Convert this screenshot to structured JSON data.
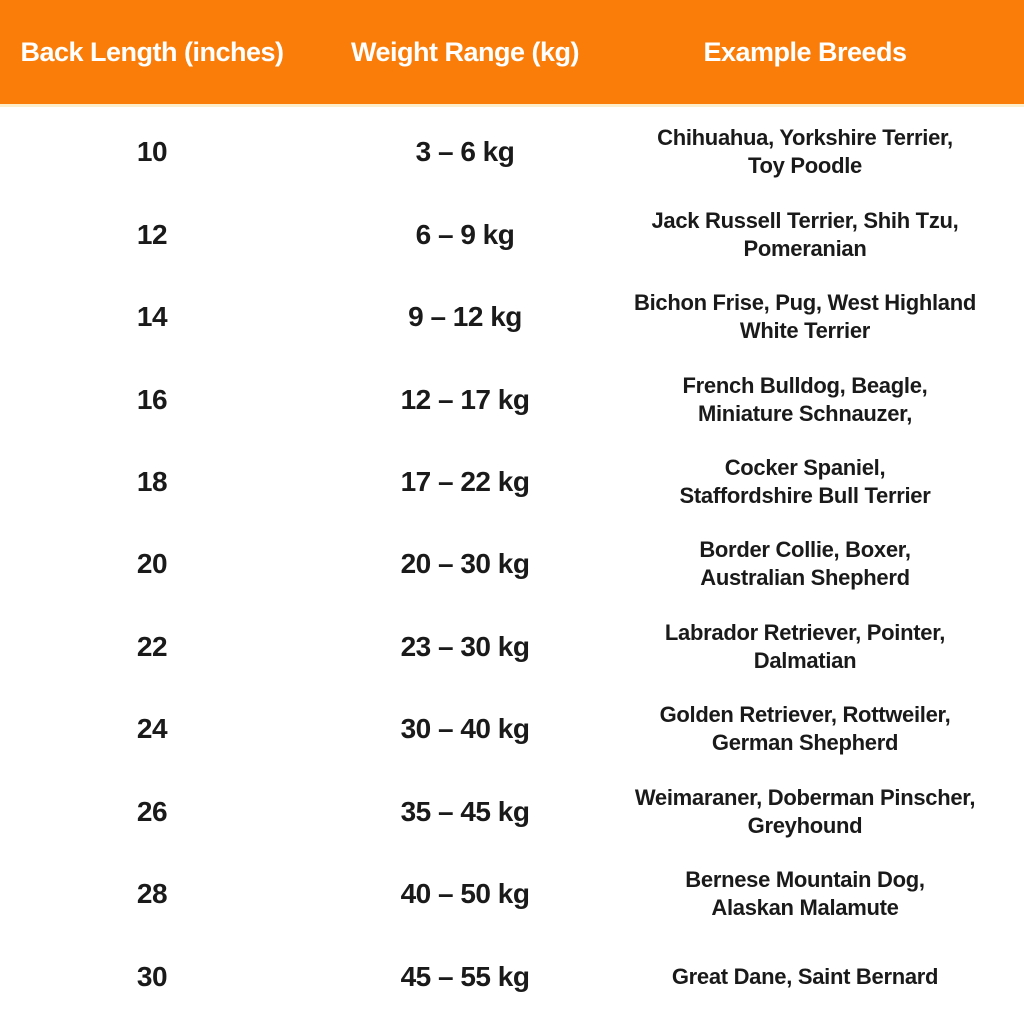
{
  "chart_data": {
    "type": "table",
    "columns": [
      "Back Length (inches)",
      "Weight Range (kg)",
      "Example Breeds"
    ],
    "rows": [
      {
        "back_length": "10",
        "weight_range": "3 – 6 kg",
        "breeds": "Chihuahua,  Yorkshire Terrier,\nToy Poodle"
      },
      {
        "back_length": "12",
        "weight_range": "6 – 9 kg",
        "breeds": "Jack Russell Terrier, Shih Tzu,\nPomeranian"
      },
      {
        "back_length": "14",
        "weight_range": "9 – 12 kg",
        "breeds": "Bichon Frise, Pug, West Highland\nWhite Terrier"
      },
      {
        "back_length": "16",
        "weight_range": "12 – 17 kg",
        "breeds": "French Bulldog, Beagle,\nMiniature Schnauzer,"
      },
      {
        "back_length": "18",
        "weight_range": "17 – 22 kg",
        "breeds": "Cocker Spaniel,\nStaffordshire Bull Terrier"
      },
      {
        "back_length": "20",
        "weight_range": "20 – 30 kg",
        "breeds": "Border Collie, Boxer,\nAustralian Shepherd"
      },
      {
        "back_length": "22",
        "weight_range": "23 – 30 kg",
        "breeds": "Labrador Retriever, Pointer,\nDalmatian"
      },
      {
        "back_length": "24",
        "weight_range": "30 – 40 kg",
        "breeds": "Golden Retriever, Rottweiler,\nGerman Shepherd"
      },
      {
        "back_length": "26",
        "weight_range": "35 – 45 kg",
        "breeds": "Weimaraner, Doberman Pinscher,\nGreyhound"
      },
      {
        "back_length": "28",
        "weight_range": "40 – 50 kg",
        "breeds": "Bernese Mountain Dog,\nAlaskan Malamute"
      },
      {
        "back_length": "30",
        "weight_range": "45 – 55 kg",
        "breeds": "Great Dane, Saint Bernard"
      }
    ]
  },
  "colors": {
    "header_bg": "#FA7D0A",
    "header_text": "#FFFFFF",
    "body_text": "#1A1A1A",
    "divider": "#FCEECB",
    "background": "#FFFFFF"
  }
}
